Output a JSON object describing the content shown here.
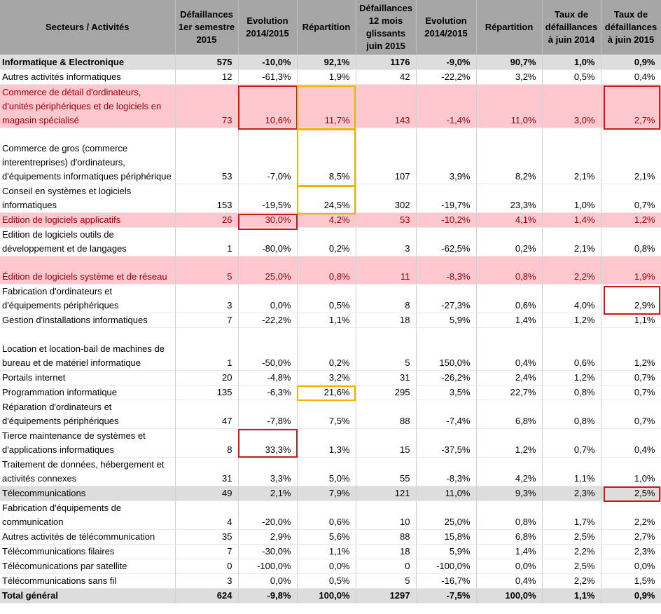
{
  "headers": [
    "Secteurs / Activités",
    "Défaillances 1er semestre 2015",
    "Evolution 2014/2015",
    "Répartition",
    "Défaillances 12 mois glissants juin 2015",
    "Evolution 2014/2015",
    "Répartition",
    "Taux de défaillances à juin 2014",
    "Taux de défaillances à juin 2015"
  ],
  "rows": [
    {
      "style": "group",
      "cells": [
        "Informatique & Electronique",
        "575",
        "-10,0%",
        "92,1%",
        "1176",
        "-9,0%",
        "90,7%",
        "1,0%",
        "0,9%"
      ]
    },
    {
      "style": "plain",
      "cells": [
        "Autres activités informatiques",
        "12",
        "-61,3%",
        "1,9%",
        "42",
        "-22,2%",
        "3,2%",
        "0,5%",
        "0,4%"
      ]
    },
    {
      "style": "pink",
      "cells": [
        "Commerce de détail d'ordinateurs, d'unités périphériques et de logiciels en magasin spécialisé",
        "73",
        "10,6%",
        "11,7%",
        "143",
        "-1,4%",
        "11,0%",
        "3,0%",
        "2,7%"
      ]
    },
    {
      "style": "plain",
      "cells": [
        "Commerce de gros (commerce interentreprises) d'ordinateurs, d'équipements informatiques périphérique",
        "53",
        "-7,0%",
        "8,5%",
        "107",
        "3,9%",
        "8,2%",
        "2,1%",
        "2,1%"
      ]
    },
    {
      "style": "plain",
      "cells": [
        "Conseil en systèmes et logiciels informatiques",
        "153",
        "-19,5%",
        "24,5%",
        "302",
        "-19,7%",
        "23,3%",
        "1,0%",
        "0,7%"
      ]
    },
    {
      "style": "pink",
      "cells": [
        "Edition de logiciels applicatifs",
        "26",
        "30,0%",
        "4,2%",
        "53",
        "-10,2%",
        "4,1%",
        "1,4%",
        "1,2%"
      ]
    },
    {
      "style": "plain",
      "cells": [
        "Edition de logiciels outils de développement et de langages",
        "1",
        "-80,0%",
        "0,2%",
        "3",
        "-62,5%",
        "0,2%",
        "2,1%",
        "0,8%"
      ]
    },
    {
      "style": "pink",
      "cells": [
        "Édition de logiciels système et de réseau",
        "5",
        "25,0%",
        "0,8%",
        "11",
        "-8,3%",
        "0,8%",
        "2,2%",
        "1,9%"
      ]
    },
    {
      "style": "plain",
      "cells": [
        "Fabrication d'ordinateurs et d'équipements périphériques",
        "3",
        "0,0%",
        "0,5%",
        "8",
        "-27,3%",
        "0,6%",
        "4,0%",
        "2,9%"
      ]
    },
    {
      "style": "plain",
      "cells": [
        "Gestion d'installations informatiques",
        "7",
        "-22,2%",
        "1,1%",
        "18",
        "5,9%",
        "1,4%",
        "1,2%",
        "1,1%"
      ]
    },
    {
      "style": "plain",
      "cells": [
        "Location et location-bail de machines de bureau et de matériel informatique",
        "1",
        "-50,0%",
        "0,2%",
        "5",
        "150,0%",
        "0,4%",
        "0,6%",
        "1,2%"
      ]
    },
    {
      "style": "plain",
      "cells": [
        "Portails internet",
        "20",
        "-4,8%",
        "3,2%",
        "31",
        "-26,2%",
        "2,4%",
        "1,2%",
        "0,7%"
      ]
    },
    {
      "style": "plain",
      "cells": [
        "Programmation informatique",
        "135",
        "-6,3%",
        "21,6%",
        "295",
        "3,5%",
        "22,7%",
        "0,8%",
        "0,7%"
      ]
    },
    {
      "style": "plain",
      "cells": [
        "Réparation d'ordinateurs et d'équipements périphériques",
        "47",
        "-7,8%",
        "7,5%",
        "88",
        "-7,4%",
        "6,8%",
        "0,8%",
        "0,7%"
      ]
    },
    {
      "style": "plain",
      "cells": [
        "Tierce maintenance de systèmes et d'applications informatiques",
        "8",
        "33,3%",
        "1,3%",
        "15",
        "-37,5%",
        "1,2%",
        "0,7%",
        "0,4%"
      ]
    },
    {
      "style": "plain",
      "cells": [
        "Traitement de données, hébergement et activités connexes",
        "31",
        "3,3%",
        "5,0%",
        "55",
        "-8,3%",
        "4,2%",
        "1,1%",
        "1,0%"
      ]
    },
    {
      "style": "group-light",
      "cells": [
        "Télecommunications",
        "49",
        "2,1%",
        "7,9%",
        "121",
        "11,0%",
        "9,3%",
        "2,3%",
        "2,5%"
      ]
    },
    {
      "style": "plain",
      "cells": [
        "Fabrication d'équipements de communication",
        "4",
        "-20,0%",
        "0,6%",
        "10",
        "25,0%",
        "0,8%",
        "1,7%",
        "2,2%"
      ]
    },
    {
      "style": "plain",
      "cells": [
        "Autres activités de télécommunication",
        "35",
        "2,9%",
        "5,6%",
        "88",
        "15,8%",
        "6,8%",
        "2,5%",
        "2,7%"
      ]
    },
    {
      "style": "plain",
      "cells": [
        "Télécommunications filaires",
        "7",
        "-30,0%",
        "1,1%",
        "18",
        "5,9%",
        "1,4%",
        "2,2%",
        "2,3%"
      ]
    },
    {
      "style": "plain",
      "cells": [
        "Télécomunications par satellite",
        "0",
        "-100,0%",
        "0,0%",
        "0",
        "-100,0%",
        "0,0%",
        "2,5%",
        "0,0%"
      ]
    },
    {
      "style": "plain",
      "cells": [
        "Télécommunications sans fil",
        "3",
        "0,0%",
        "0,5%",
        "5",
        "-16,7%",
        "0,4%",
        "2,2%",
        "1,5%"
      ]
    },
    {
      "style": "total",
      "cells": [
        "Total général",
        "624",
        "-9,8%",
        "100,0%",
        "1297",
        "-7,5%",
        "100,0%",
        "1,1%",
        "0,9%"
      ]
    }
  ],
  "highlight_colors": {
    "pink_fill": "#ffc7ce",
    "pink_text": "#9c0006",
    "red_box": "#d01919",
    "yellow_box": "#f0b400",
    "header_fill": "#a6a6a6",
    "group_fill": "#dddddd"
  }
}
